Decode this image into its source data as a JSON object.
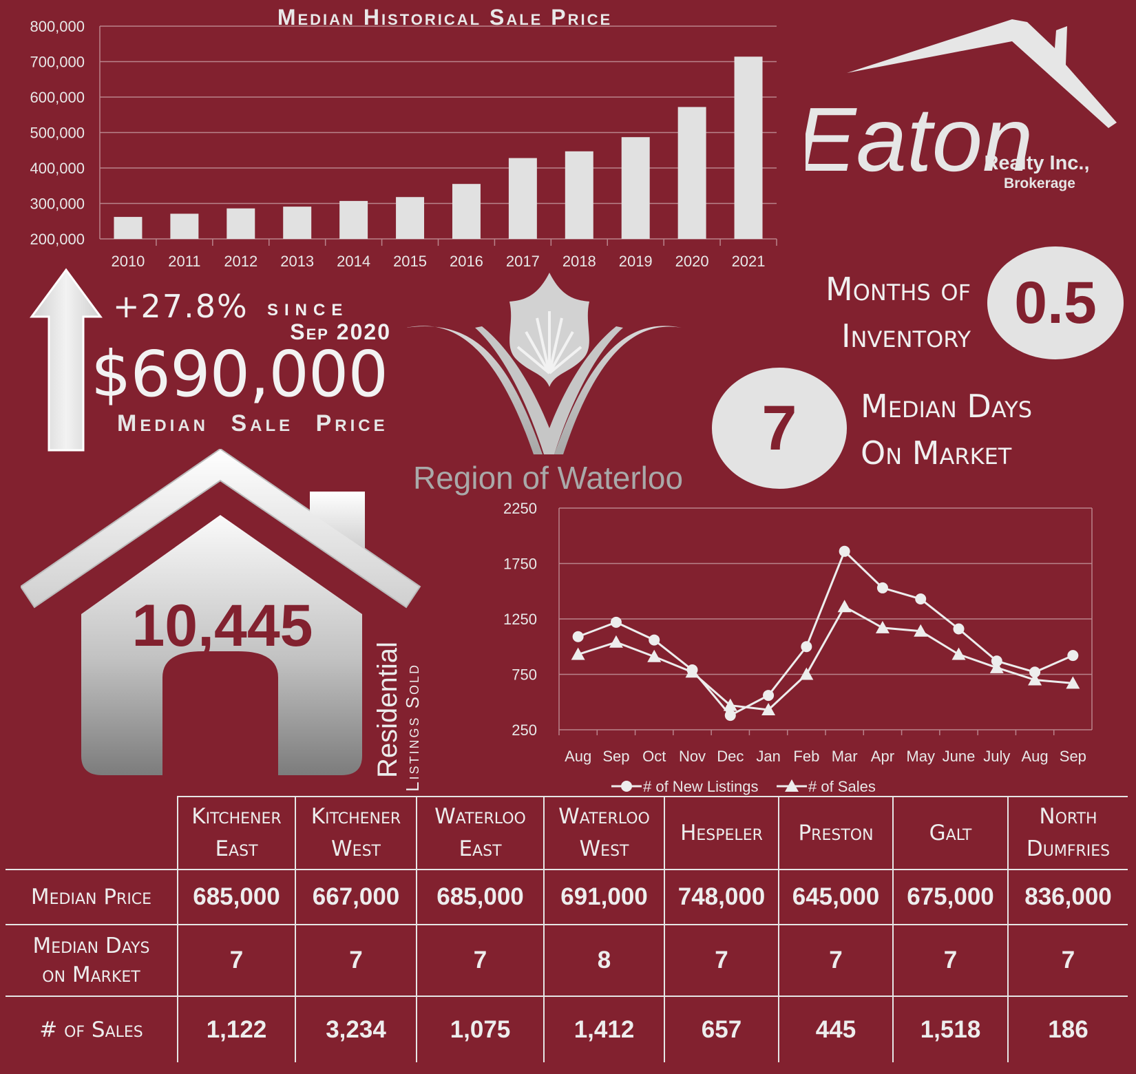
{
  "bar_chart_title": "Median Historical Sale Price",
  "summary": {
    "change": "+27.8%",
    "since": "since",
    "since_date": "Sep 2020",
    "price": "$690,000",
    "price_label": "Median Sale Price"
  },
  "region_logo_text": "Region of Waterloo",
  "brand": {
    "name": "Eaton",
    "line1": "Realty Inc.,",
    "line2": "Brokerage"
  },
  "months_inventory": {
    "label_line1": "Months of",
    "label_line2": "Inventory",
    "value": "0.5"
  },
  "median_days": {
    "value": "7",
    "label_line1": "Median Days",
    "label_line2": "On Market"
  },
  "listings_sold": {
    "value": "10,445",
    "label_line1": "Residential",
    "label_line2": "Listings Sold"
  },
  "chart_data": [
    {
      "type": "bar",
      "title": "Median Historical Sale Price",
      "categories": [
        "2010",
        "2011",
        "2012",
        "2013",
        "2014",
        "2015",
        "2016",
        "2017",
        "2018",
        "2019",
        "2020",
        "2021"
      ],
      "values": [
        262000,
        271000,
        286000,
        291000,
        307000,
        318000,
        355000,
        428000,
        447000,
        487000,
        572000,
        714000
      ],
      "ylim": [
        200000,
        800000
      ],
      "yticks": [
        "200,000",
        "300,000",
        "400,000",
        "500,000",
        "600,000",
        "700,000",
        "800,000"
      ],
      "grid": true
    },
    {
      "type": "line",
      "categories": [
        "Aug",
        "Sep",
        "Oct",
        "Nov",
        "Dec",
        "Jan",
        "Feb",
        "Mar",
        "Apr",
        "May",
        "June",
        "July",
        "Aug",
        "Sep"
      ],
      "series": [
        {
          "name": "# of New Listings",
          "marker": "circle",
          "values": [
            1090,
            1220,
            1060,
            790,
            380,
            560,
            1000,
            1860,
            1530,
            1430,
            1160,
            870,
            770,
            920
          ]
        },
        {
          "name": "# of Sales",
          "marker": "triangle",
          "values": [
            930,
            1040,
            910,
            770,
            470,
            430,
            750,
            1360,
            1170,
            1140,
            930,
            810,
            700,
            670
          ]
        }
      ],
      "ylim": [
        250,
        2250
      ],
      "yticks": [
        "250",
        "750",
        "1250",
        "1750",
        "2250"
      ],
      "legend": "bottom",
      "grid": true
    }
  ],
  "table": {
    "columns": [
      {
        "line1": "Kitchener",
        "line2": "East"
      },
      {
        "line1": "Kitchener",
        "line2": "West"
      },
      {
        "line1": "Waterloo",
        "line2": "East"
      },
      {
        "line1": "Waterloo",
        "line2": "West"
      },
      {
        "line1": "Hespeler",
        "line2": ""
      },
      {
        "line1": "Preston",
        "line2": ""
      },
      {
        "line1": "Galt",
        "line2": ""
      },
      {
        "line1": "North",
        "line2": "Dumfries"
      }
    ],
    "rows": [
      {
        "label_line1": "Median Price",
        "label_line2": "",
        "values": [
          "685,000",
          "667,000",
          "685,000",
          "691,000",
          "748,000",
          "645,000",
          "675,000",
          "836,000"
        ]
      },
      {
        "label_line1": "Median Days",
        "label_line2": "on Market",
        "values": [
          "7",
          "7",
          "7",
          "8",
          "7",
          "7",
          "7",
          "7"
        ]
      },
      {
        "label_line1": "# of Sales",
        "label_line2": "",
        "values": [
          "1,122",
          "3,234",
          "1,075",
          "1,412",
          "657",
          "445",
          "1,518",
          "186"
        ]
      }
    ]
  }
}
